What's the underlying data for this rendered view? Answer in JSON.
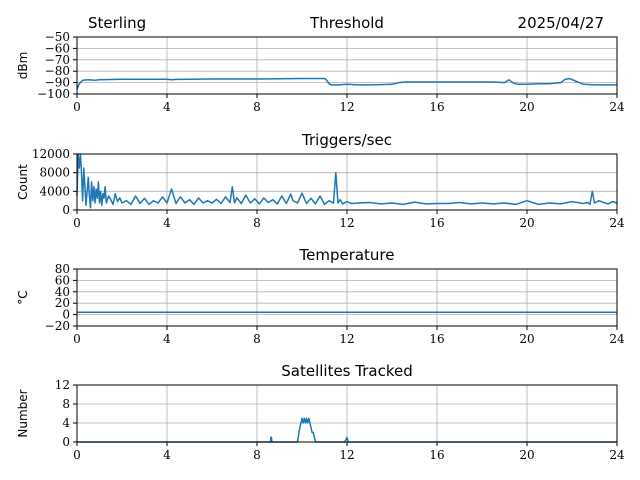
{
  "header": {
    "site": "Sterling",
    "date": "2025/04/27"
  },
  "series_color": "#1f77b4",
  "chart_data": [
    {
      "type": "line",
      "title": "Threshold",
      "ylabel": "dBm",
      "xlabel": "",
      "xlim": [
        0,
        24
      ],
      "ylim": [
        -100,
        -50
      ],
      "xticks": [
        0,
        4,
        8,
        12,
        16,
        20,
        24
      ],
      "yticks": [
        -100,
        -90,
        -80,
        -70,
        -60,
        -50
      ],
      "grid": true,
      "series": [
        {
          "x": [
            0,
            0.1,
            0.25,
            0.5,
            0.8,
            1.0,
            1.5,
            2,
            3,
            4,
            4.2,
            4.4,
            5,
            6,
            7,
            8,
            9,
            10,
            10.5,
            11,
            11.1,
            11.2,
            11.3,
            11.6,
            12,
            12.5,
            13,
            14,
            14.3,
            14.6,
            15,
            16,
            17,
            18,
            18.5,
            19,
            19.2,
            19.4,
            19.6,
            20,
            20.5,
            21,
            21.5,
            21.7,
            21.9,
            22.2,
            22.5,
            23,
            24
          ],
          "y": [
            -96,
            -91,
            -88,
            -87.5,
            -88,
            -87.5,
            -87.3,
            -87,
            -87,
            -87,
            -87.5,
            -87.2,
            -87,
            -86.8,
            -86.8,
            -86.8,
            -86.6,
            -86.4,
            -86.4,
            -86.4,
            -88,
            -91,
            -92,
            -92,
            -91.5,
            -92,
            -92,
            -91.5,
            -90,
            -89.5,
            -89.5,
            -89.5,
            -89.5,
            -89.5,
            -89.5,
            -90,
            -87.5,
            -90.5,
            -91.5,
            -91.5,
            -91,
            -91,
            -90,
            -87,
            -86.5,
            -89,
            -91.5,
            -92,
            -92
          ]
        }
      ]
    },
    {
      "type": "line",
      "title": "Triggers/sec",
      "ylabel": "Count",
      "xlabel": "",
      "xlim": [
        0,
        24
      ],
      "ylim": [
        0,
        12000
      ],
      "xticks": [
        0,
        4,
        8,
        12,
        16,
        20,
        24
      ],
      "yticks": [
        0,
        4000,
        8000,
        12000
      ],
      "grid": true,
      "series": [
        {
          "x": [
            0,
            0.05,
            0.1,
            0.15,
            0.2,
            0.25,
            0.3,
            0.35,
            0.4,
            0.45,
            0.5,
            0.55,
            0.6,
            0.65,
            0.7,
            0.75,
            0.8,
            0.85,
            0.9,
            0.95,
            1.0,
            1.05,
            1.1,
            1.15,
            1.2,
            1.25,
            1.3,
            1.4,
            1.5,
            1.6,
            1.7,
            1.8,
            1.9,
            2.0,
            2.2,
            2.4,
            2.6,
            2.8,
            3.0,
            3.2,
            3.4,
            3.6,
            3.8,
            4.0,
            4.2,
            4.4,
            4.5,
            4.6,
            4.8,
            5.0,
            5.2,
            5.4,
            5.6,
            5.8,
            6.0,
            6.2,
            6.4,
            6.6,
            6.8,
            6.9,
            7.0,
            7.1,
            7.3,
            7.5,
            7.7,
            7.9,
            8.1,
            8.3,
            8.5,
            8.7,
            8.9,
            9.1,
            9.3,
            9.5,
            9.6,
            9.8,
            10.0,
            10.2,
            10.4,
            10.6,
            10.8,
            11.0,
            11.2,
            11.4,
            11.5,
            11.6,
            11.7,
            11.8,
            12.0,
            12.2,
            12.5,
            13,
            13.5,
            14,
            14.5,
            15,
            15.5,
            16,
            16.5,
            17,
            17.5,
            18,
            18.5,
            19,
            19.5,
            20,
            20.5,
            21,
            21.5,
            22,
            22.5,
            22.7,
            22.8,
            22.9,
            23,
            23.2,
            23.4,
            23.6,
            23.8,
            24
          ],
          "y": [
            3000,
            12000,
            9000,
            12000,
            8000,
            2000,
            9000,
            5000,
            1000,
            4000,
            7000,
            3000,
            500,
            6000,
            2000,
            5000,
            1500,
            4500,
            2500,
            6000,
            1500,
            4000,
            1000,
            3500,
            2500,
            5000,
            1500,
            3000,
            2200,
            1200,
            3500,
            1800,
            2600,
            1500,
            2000,
            1200,
            3000,
            1400,
            2500,
            1200,
            2000,
            1500,
            2800,
            1500,
            4500,
            1400,
            2200,
            2800,
            1500,
            2200,
            1200,
            2600,
            1500,
            2000,
            1500,
            2300,
            1400,
            2800,
            1600,
            5000,
            1500,
            2600,
            1400,
            3200,
            1500,
            2400,
            1300,
            2600,
            1600,
            2200,
            1300,
            3000,
            1400,
            3400,
            2000,
            1500,
            3600,
            1400,
            2500,
            1300,
            3000,
            1200,
            2000,
            1500,
            8000,
            1500,
            2200,
            1300,
            1800,
            1400,
            1500,
            1600,
            1300,
            1500,
            1200,
            1700,
            1300,
            1400,
            1400,
            1600,
            1300,
            1500,
            1300,
            1500,
            1200,
            2000,
            1200,
            1500,
            1300,
            1800,
            1400,
            1600,
            1200,
            4000,
            1500,
            2000,
            1600,
            1300,
            1800,
            1500
          ]
        }
      ]
    },
    {
      "type": "line",
      "title": "Temperature",
      "ylabel": "°C",
      "xlabel": "",
      "xlim": [
        0,
        24
      ],
      "ylim": [
        -20,
        80
      ],
      "xticks": [
        0,
        4,
        8,
        12,
        16,
        20,
        24
      ],
      "yticks": [
        -20,
        0,
        20,
        40,
        60,
        80
      ],
      "grid": true,
      "series": [
        {
          "x": [
            0,
            24
          ],
          "y": [
            4,
            4
          ]
        }
      ]
    },
    {
      "type": "line",
      "title": "Satellites Tracked",
      "ylabel": "Number",
      "xlabel": "",
      "xlim": [
        0,
        24
      ],
      "ylim": [
        0,
        12
      ],
      "xticks": [
        0,
        4,
        8,
        12,
        16,
        20,
        24
      ],
      "yticks": [
        0,
        4,
        8,
        12
      ],
      "grid": true,
      "series": [
        {
          "x": [
            0,
            8.6,
            8.62,
            8.64,
            8.66,
            9.8,
            9.9,
            10.0,
            10.05,
            10.1,
            10.15,
            10.2,
            10.25,
            10.3,
            10.35,
            10.4,
            10.45,
            10.5,
            10.55,
            10.6,
            11.9,
            12.0,
            12.05,
            12.1,
            24
          ],
          "y": [
            0,
            0,
            1,
            1,
            0,
            0,
            3,
            5,
            4,
            5,
            4,
            5,
            4,
            5,
            4,
            3,
            2,
            2,
            1,
            0,
            0,
            1,
            0,
            0,
            0
          ]
        }
      ]
    }
  ]
}
